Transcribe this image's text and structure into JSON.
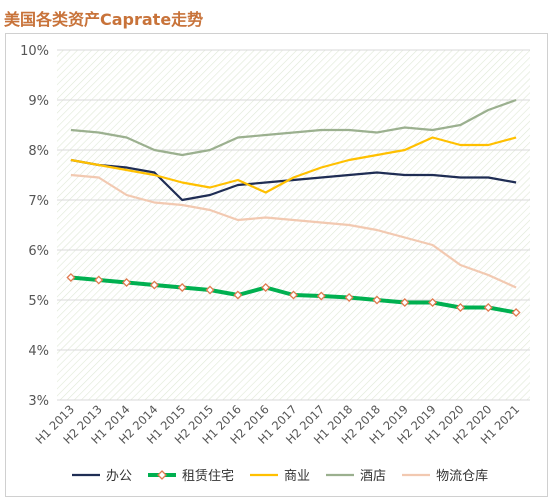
{
  "title": "美国各类资产Caprate走势",
  "chart_data": {
    "type": "line",
    "title": "美国各类资产Caprate走势",
    "categories": [
      "H1 2013",
      "H2 2013",
      "H1 2014",
      "H2 2014",
      "H1 2015",
      "H2 2015",
      "H1 2016",
      "H2 2016",
      "H1 2017",
      "H2 2017",
      "H1 2018",
      "H2 2018",
      "H1 2019",
      "H2 2019",
      "H1 2020",
      "H2 2020",
      "H1 2021"
    ],
    "ylim": [
      3,
      10
    ],
    "yticks": [
      "3%",
      "4%",
      "5%",
      "6%",
      "7%",
      "8%",
      "9%",
      "10%"
    ],
    "grid": true,
    "legend_position": "bottom",
    "series": [
      {
        "name": "办公",
        "color": "#1f2d54",
        "values": [
          7.8,
          7.7,
          7.65,
          7.55,
          7.0,
          7.1,
          7.3,
          7.35,
          7.4,
          7.45,
          7.5,
          7.55,
          7.5,
          7.5,
          7.45,
          7.45,
          7.35
        ]
      },
      {
        "name": "租赁住宅",
        "color": "#00b050",
        "marker_color": "#e07a4f",
        "values": [
          5.45,
          5.4,
          5.35,
          5.3,
          5.25,
          5.2,
          5.1,
          5.25,
          5.1,
          5.08,
          5.05,
          5.0,
          4.95,
          4.95,
          4.85,
          4.85,
          4.75
        ]
      },
      {
        "name": "商业",
        "color": "#ffc000",
        "values": [
          7.8,
          7.7,
          7.6,
          7.5,
          7.35,
          7.25,
          7.4,
          7.15,
          7.45,
          7.65,
          7.8,
          7.9,
          8.0,
          8.25,
          8.1,
          8.1,
          8.25
        ]
      },
      {
        "name": "酒店",
        "color": "#9bb08f",
        "values": [
          8.4,
          8.35,
          8.25,
          8.0,
          7.9,
          8.0,
          8.25,
          8.3,
          8.35,
          8.4,
          8.4,
          8.35,
          8.45,
          8.4,
          8.5,
          8.8,
          9.0
        ]
      },
      {
        "name": "物流仓库",
        "color": "#f2c9b1",
        "values": [
          7.5,
          7.45,
          7.1,
          6.95,
          6.9,
          6.8,
          6.6,
          6.65,
          6.6,
          6.55,
          6.5,
          6.4,
          6.25,
          6.1,
          5.7,
          5.5,
          5.25
        ]
      }
    ]
  }
}
